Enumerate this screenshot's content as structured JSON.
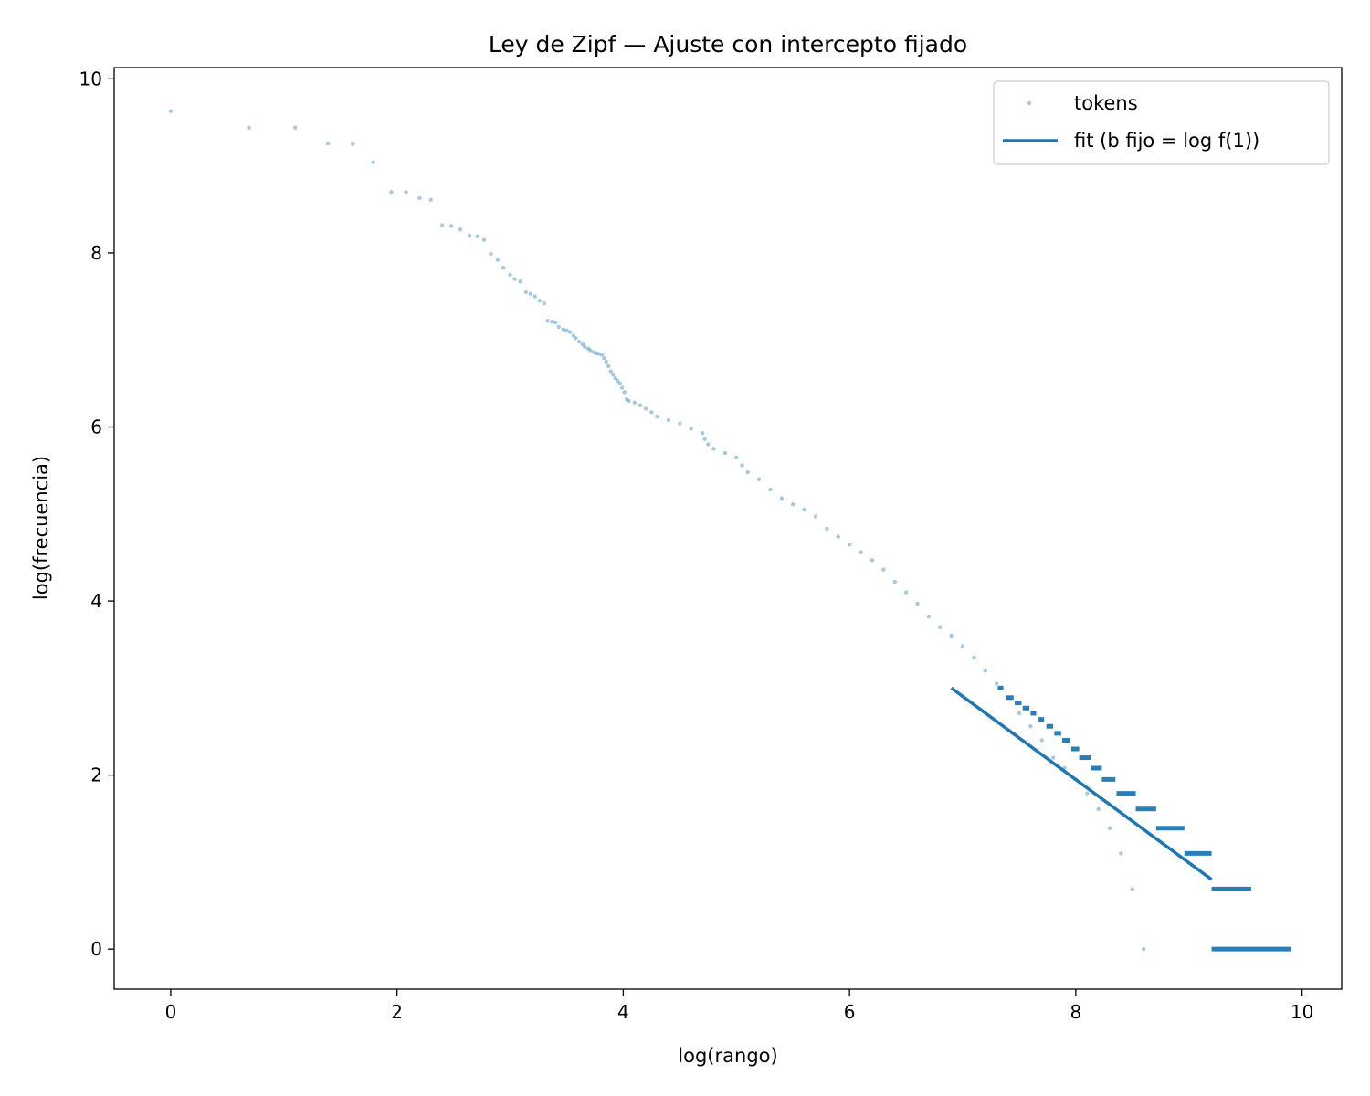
{
  "chart_data": {
    "type": "scatter",
    "title": "Ley de Zipf — Ajuste con intercepto fijado",
    "xlabel": "log(rango)",
    "ylabel": "log(frecuencia)",
    "xlim": [
      -0.5,
      10.35
    ],
    "ylim": [
      -0.46,
      10.13
    ],
    "xticks": [
      0,
      2,
      4,
      6,
      8,
      10
    ],
    "yticks": [
      0,
      2,
      4,
      6,
      8,
      10
    ],
    "xtick_labels": [
      "0",
      "2",
      "4",
      "6",
      "8",
      "10"
    ],
    "ytick_labels": [
      "0",
      "2",
      "4",
      "6",
      "8",
      "10"
    ],
    "grid": false,
    "legend_position": "top-right",
    "series": [
      {
        "name": "tokens",
        "kind": "scatter",
        "color": "#1f77b4",
        "alpha": 0.4,
        "points": [
          [
            0.0,
            9.63
          ],
          [
            0.69,
            9.44
          ],
          [
            1.1,
            9.44
          ],
          [
            1.39,
            9.26
          ],
          [
            1.61,
            9.25
          ],
          [
            1.79,
            9.04
          ],
          [
            1.95,
            8.7
          ],
          [
            2.08,
            8.7
          ],
          [
            2.2,
            8.63
          ],
          [
            2.3,
            8.61
          ],
          [
            2.4,
            8.32
          ],
          [
            2.48,
            8.31
          ],
          [
            2.56,
            8.27
          ],
          [
            2.64,
            8.2
          ],
          [
            2.71,
            8.19
          ],
          [
            2.77,
            8.15
          ],
          [
            2.83,
            7.99
          ],
          [
            2.89,
            7.92
          ],
          [
            2.94,
            7.83
          ],
          [
            3.0,
            7.75
          ],
          [
            3.04,
            7.7
          ],
          [
            3.09,
            7.67
          ],
          [
            3.14,
            7.55
          ],
          [
            3.18,
            7.53
          ],
          [
            3.22,
            7.5
          ],
          [
            3.26,
            7.45
          ],
          [
            3.3,
            7.42
          ],
          [
            3.33,
            7.22
          ],
          [
            3.37,
            7.21
          ],
          [
            3.4,
            7.2
          ],
          [
            3.43,
            7.15
          ],
          [
            3.47,
            7.12
          ],
          [
            3.5,
            7.11
          ],
          [
            3.53,
            7.09
          ],
          [
            3.56,
            7.05
          ],
          [
            3.58,
            7.02
          ],
          [
            3.61,
            6.98
          ],
          [
            3.64,
            6.95
          ],
          [
            3.66,
            6.92
          ],
          [
            3.69,
            6.9
          ],
          [
            3.71,
            6.88
          ],
          [
            3.74,
            6.86
          ],
          [
            3.76,
            6.85
          ],
          [
            3.78,
            6.84
          ],
          [
            3.81,
            6.83
          ],
          [
            3.83,
            6.79
          ],
          [
            3.85,
            6.75
          ],
          [
            3.87,
            6.7
          ],
          [
            3.89,
            6.64
          ],
          [
            3.91,
            6.6
          ],
          [
            3.93,
            6.56
          ],
          [
            3.95,
            6.53
          ],
          [
            3.97,
            6.5
          ],
          [
            3.99,
            6.45
          ],
          [
            4.01,
            6.4
          ],
          [
            4.03,
            6.32
          ],
          [
            4.05,
            6.3
          ],
          [
            4.1,
            6.28
          ],
          [
            4.15,
            6.25
          ],
          [
            4.2,
            6.21
          ],
          [
            4.25,
            6.17
          ],
          [
            4.3,
            6.12
          ],
          [
            4.4,
            6.08
          ],
          [
            4.5,
            6.04
          ],
          [
            4.6,
            5.98
          ],
          [
            4.7,
            5.93
          ],
          [
            4.72,
            5.86
          ],
          [
            4.75,
            5.8
          ],
          [
            4.8,
            5.75
          ],
          [
            4.9,
            5.7
          ],
          [
            5.0,
            5.65
          ],
          [
            5.05,
            5.56
          ],
          [
            5.1,
            5.48
          ],
          [
            5.2,
            5.4
          ],
          [
            5.3,
            5.28
          ],
          [
            5.4,
            5.18
          ],
          [
            5.5,
            5.11
          ],
          [
            5.6,
            5.05
          ],
          [
            5.7,
            4.97
          ],
          [
            5.8,
            4.83
          ],
          [
            5.9,
            4.74
          ],
          [
            6.0,
            4.65
          ],
          [
            6.1,
            4.56
          ],
          [
            6.2,
            4.47
          ],
          [
            6.3,
            4.36
          ],
          [
            6.4,
            4.22
          ],
          [
            6.5,
            4.1
          ],
          [
            6.6,
            3.97
          ],
          [
            6.7,
            3.82
          ],
          [
            6.8,
            3.7
          ],
          [
            6.9,
            3.6
          ],
          [
            7.0,
            3.48
          ],
          [
            7.1,
            3.35
          ],
          [
            7.2,
            3.2
          ],
          [
            7.3,
            3.05
          ],
          [
            7.4,
            2.89
          ],
          [
            7.5,
            2.71
          ],
          [
            7.6,
            2.56
          ],
          [
            7.7,
            2.4
          ],
          [
            7.8,
            2.2
          ],
          [
            7.9,
            2.08
          ],
          [
            8.0,
            1.95
          ],
          [
            8.1,
            1.79
          ],
          [
            8.2,
            1.61
          ],
          [
            8.3,
            1.39
          ],
          [
            8.4,
            1.1
          ],
          [
            8.5,
            0.69
          ],
          [
            8.6,
            0.0
          ]
        ],
        "plateaus": [
          {
            "y": 3.0,
            "x": [
              7.31,
              7.36
            ]
          },
          {
            "y": 2.89,
            "x": [
              7.38,
              7.45
            ]
          },
          {
            "y": 2.83,
            "x": [
              7.46,
              7.52
            ]
          },
          {
            "y": 2.77,
            "x": [
              7.53,
              7.59
            ]
          },
          {
            "y": 2.71,
            "x": [
              7.6,
              7.65
            ]
          },
          {
            "y": 2.64,
            "x": [
              7.67,
              7.72
            ]
          },
          {
            "y": 2.56,
            "x": [
              7.74,
              7.8
            ]
          },
          {
            "y": 2.48,
            "x": [
              7.81,
              7.87
            ]
          },
          {
            "y": 2.4,
            "x": [
              7.88,
              7.95
            ]
          },
          {
            "y": 2.3,
            "x": [
              7.96,
              8.03
            ]
          },
          {
            "y": 2.2,
            "x": [
              8.03,
              8.13
            ]
          },
          {
            "y": 2.08,
            "x": [
              8.13,
              8.23
            ]
          },
          {
            "y": 1.95,
            "x": [
              8.23,
              8.35
            ]
          },
          {
            "y": 1.79,
            "x": [
              8.36,
              8.53
            ]
          },
          {
            "y": 1.61,
            "x": [
              8.53,
              8.71
            ]
          },
          {
            "y": 1.39,
            "x": [
              8.71,
              8.96
            ]
          },
          {
            "y": 1.1,
            "x": [
              8.96,
              9.2
            ]
          },
          {
            "y": 0.69,
            "x": [
              9.2,
              9.55
            ]
          },
          {
            "y": 0.0,
            "x": [
              9.2,
              9.9
            ]
          }
        ]
      },
      {
        "name": "fit (b fijo = log f(1))",
        "kind": "line",
        "color": "#1f77b4",
        "x": [
          6.9,
          9.2
        ],
        "y": [
          3.0,
          0.8
        ]
      }
    ]
  }
}
